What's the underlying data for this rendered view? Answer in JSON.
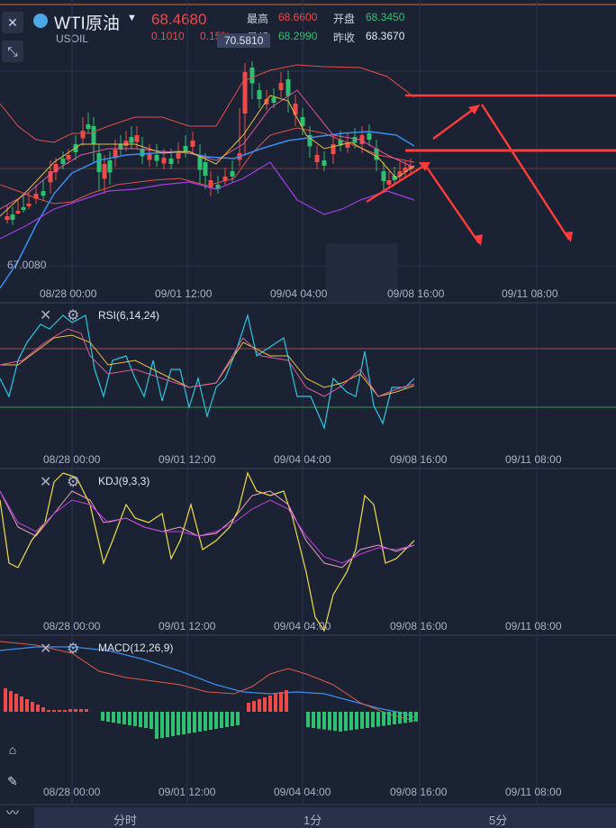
{
  "instrument": {
    "name": "WTI原油",
    "code": "USOIL",
    "price": "68.4680",
    "change": "0.1010",
    "change_pct": "0.15%"
  },
  "stats": {
    "high_label": "最高",
    "high": "68.6600",
    "open_label": "开盘",
    "open": "68.3450",
    "low_label": "最低",
    "low": "68.2990",
    "prev_close_label": "昨收",
    "prev_close": "68.3670"
  },
  "main_chart": {
    "high_marker": "70.5810",
    "low_marker": "67.0080",
    "x_labels": [
      "08/28 00:00",
      "09/01 12:00",
      "09/04 04:00",
      "09/08 16:00",
      "09/11 08:00"
    ]
  },
  "panels": {
    "rsi": {
      "title": "RSI(6,14,24)"
    },
    "kdj": {
      "title": "KDJ(9,3,3)"
    },
    "macd": {
      "title": "MACD(12,26,9)"
    }
  },
  "tabs": [
    "分时",
    "1分",
    "5分"
  ],
  "colors": {
    "background": "#1b2233",
    "up": "#ee4a4a",
    "down": "#2fbf71",
    "ma_blue": "#3a8ff0",
    "ma_purple": "#a040e0",
    "arrow_red": "#ff3b3b"
  },
  "icons": [
    "close-icon",
    "collapse-icon",
    "settings-gear-icon",
    "indicator-icon",
    "draw-pen-icon",
    "trend-icon"
  ]
}
